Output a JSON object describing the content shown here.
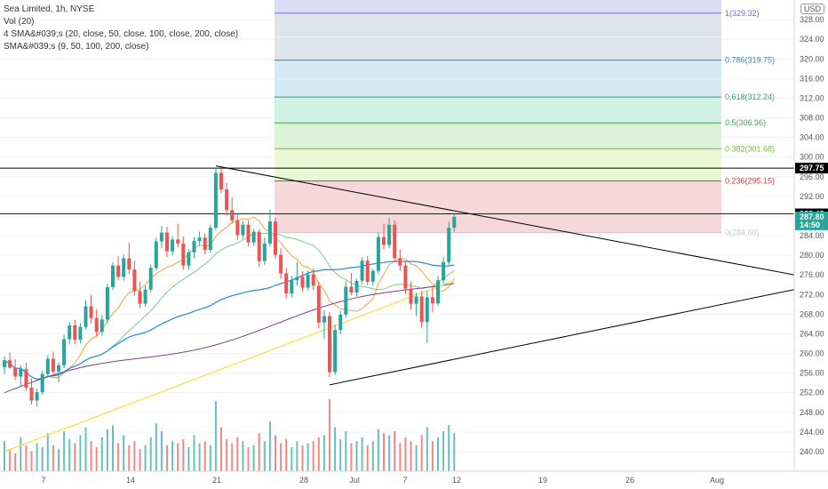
{
  "legend": {
    "title": "Sea Limited, 1h, NYSE",
    "vol": "Vol (20)",
    "sma4": "4 SMA&#039;s (20, close, 50, close, 100, close, 200, close)",
    "sma4b": "SMA&#039;s (9, 50, 100, 200, close)"
  },
  "currency": "USD",
  "colors": {
    "up": "#26a69a",
    "down": "#ef5350",
    "line": "#000000",
    "axis_text": "#555555",
    "sma_orange": "#f4a13b",
    "sma_green": "#7fc88a",
    "sma_blue": "#1e88e5",
    "sma_purple": "#7b3f8c",
    "sma_yellow": "#f2e24a"
  },
  "chart_data": {
    "type": "candlestick",
    "symbol": "Sea Limited",
    "interval": "1h",
    "exchange": "NYSE",
    "ylim": [
      236,
      332
    ],
    "y_ticks": [
      240,
      244,
      248,
      252,
      256,
      260,
      264,
      268,
      272,
      276,
      280,
      284,
      288,
      292,
      296,
      300,
      304,
      308,
      312,
      316,
      320,
      324,
      328
    ],
    "x_ticks": [
      "7",
      "14",
      "21",
      "28",
      "Jul",
      "7",
      "12",
      "19",
      "26",
      "Aug"
    ],
    "price_labels": [
      {
        "text": "297.75",
        "value": 297.75,
        "style": "black"
      },
      {
        "text": "288.43",
        "value": 288.43,
        "style": "black"
      },
      {
        "text": "287.80",
        "value": 287.8,
        "style": "green"
      },
      {
        "text": "14:50",
        "value": 286.2,
        "style": "green"
      }
    ],
    "fibonacci": [
      {
        "label": "1(329.32)",
        "value": 329.32,
        "color": "#6b6bd6",
        "fill": "#e0e0f5"
      },
      {
        "label": "0.786(319.75)",
        "value": 319.75,
        "color": "#2f86c6",
        "fill": "#dde3e8"
      },
      {
        "label": "0.618(312.24)",
        "value": 312.24,
        "color": "#2aa07a",
        "fill": "#d2e8f4"
      },
      {
        "label": "0.5(306.96)",
        "value": 306.96,
        "color": "#3aa84a",
        "fill": "#d0f0e4"
      },
      {
        "label": "0.382(301.68)",
        "value": 301.68,
        "color": "#76b83a",
        "fill": "#daf2d6"
      },
      {
        "label": "0.236(295.15)",
        "value": 295.15,
        "color": "#d43a3a",
        "fill": "#e9f5d2"
      },
      {
        "label": "0(284.60)",
        "value": 284.6,
        "color": "#c8c8c8",
        "fill": "#f5d6d6"
      }
    ],
    "candles": [
      [
        257.2,
        259.4,
        255.8,
        258.6
      ],
      [
        258.6,
        260.2,
        256.9,
        257.1
      ],
      [
        257.1,
        258.8,
        254.6,
        255.3
      ],
      [
        255.3,
        257.6,
        253.2,
        256.8
      ],
      [
        256.8,
        258.1,
        252.4,
        253.0
      ],
      [
        253.0,
        254.9,
        249.6,
        250.4
      ],
      [
        250.4,
        252.8,
        249.2,
        252.1
      ],
      [
        252.1,
        256.4,
        251.6,
        255.8
      ],
      [
        255.8,
        259.6,
        255.1,
        258.9
      ],
      [
        258.9,
        260.4,
        255.7,
        256.3
      ],
      [
        256.3,
        258.2,
        254.1,
        257.6
      ],
      [
        257.6,
        263.8,
        257.0,
        262.9
      ],
      [
        262.9,
        266.4,
        261.8,
        265.7
      ],
      [
        265.7,
        266.8,
        261.9,
        262.8
      ],
      [
        262.8,
        266.2,
        262.1,
        265.4
      ],
      [
        265.4,
        270.8,
        264.9,
        269.6
      ],
      [
        269.6,
        271.9,
        266.1,
        267.2
      ],
      [
        267.2,
        269.0,
        263.5,
        264.4
      ],
      [
        264.4,
        267.8,
        263.6,
        266.9
      ],
      [
        266.9,
        274.2,
        266.2,
        273.5
      ],
      [
        273.5,
        278.6,
        272.9,
        277.9
      ],
      [
        277.9,
        279.8,
        274.9,
        275.6
      ],
      [
        275.6,
        280.2,
        274.8,
        279.4
      ],
      [
        279.4,
        282.6,
        276.2,
        277.1
      ],
      [
        277.1,
        278.9,
        271.8,
        272.7
      ],
      [
        272.7,
        274.6,
        269.2,
        270.1
      ],
      [
        270.1,
        273.8,
        269.5,
        273.0
      ],
      [
        273.0,
        278.1,
        272.4,
        277.4
      ],
      [
        277.4,
        283.6,
        276.9,
        282.8
      ],
      [
        282.8,
        285.9,
        281.4,
        284.6
      ],
      [
        284.6,
        285.8,
        279.6,
        280.8
      ],
      [
        280.8,
        283.9,
        280.0,
        283.2
      ],
      [
        283.2,
        286.4,
        281.6,
        282.4
      ],
      [
        282.4,
        283.8,
        277.1,
        277.9
      ],
      [
        277.9,
        281.2,
        277.1,
        280.6
      ],
      [
        280.6,
        283.7,
        279.4,
        282.9
      ],
      [
        282.9,
        284.8,
        281.9,
        283.6
      ],
      [
        283.6,
        284.4,
        280.2,
        281.1
      ],
      [
        281.1,
        286.3,
        280.5,
        285.6
      ],
      [
        285.6,
        297.9,
        285.1,
        296.8
      ],
      [
        296.8,
        298.2,
        292.6,
        293.4
      ],
      [
        293.4,
        294.8,
        288.1,
        289.2
      ],
      [
        289.2,
        291.8,
        286.4,
        287.1
      ],
      [
        287.1,
        288.4,
        283.2,
        284.1
      ],
      [
        284.1,
        286.9,
        283.4,
        286.2
      ],
      [
        286.2,
        287.1,
        281.8,
        282.6
      ],
      [
        282.6,
        285.4,
        281.9,
        284.8
      ],
      [
        284.8,
        285.3,
        277.6,
        278.8
      ],
      [
        278.8,
        283.6,
        278.0,
        282.4
      ],
      [
        282.4,
        289.2,
        281.8,
        286.9
      ],
      [
        286.9,
        287.6,
        279.3,
        280.1
      ],
      [
        280.1,
        281.4,
        275.2,
        276.3
      ],
      [
        276.3,
        277.4,
        271.1,
        272.2
      ],
      [
        272.2,
        275.8,
        271.4,
        274.9
      ],
      [
        274.9,
        278.6,
        273.8,
        275.6
      ],
      [
        275.6,
        276.7,
        272.6,
        273.4
      ],
      [
        273.4,
        276.9,
        272.8,
        276.1
      ],
      [
        276.1,
        277.3,
        272.9,
        273.8
      ],
      [
        273.8,
        274.6,
        265.1,
        266.3
      ],
      [
        266.3,
        268.8,
        262.9,
        267.6
      ],
      [
        267.6,
        268.4,
        255.1,
        256.2
      ],
      [
        256.2,
        265.9,
        255.6,
        264.8
      ],
      [
        264.8,
        268.7,
        263.9,
        267.9
      ],
      [
        267.9,
        274.8,
        267.2,
        273.6
      ],
      [
        273.6,
        276.4,
        271.8,
        272.4
      ],
      [
        272.4,
        275.2,
        271.6,
        274.8
      ],
      [
        274.8,
        279.6,
        274.1,
        278.9
      ],
      [
        278.9,
        279.8,
        273.9,
        274.6
      ],
      [
        274.6,
        277.2,
        273.8,
        276.8
      ],
      [
        276.8,
        284.6,
        276.1,
        283.7
      ],
      [
        283.7,
        286.4,
        281.2,
        282.1
      ],
      [
        282.1,
        287.6,
        281.4,
        286.2
      ],
      [
        286.2,
        287.1,
        278.6,
        279.4
      ],
      [
        279.4,
        281.2,
        276.8,
        277.9
      ],
      [
        277.9,
        278.8,
        272.1,
        273.2
      ],
      [
        273.2,
        274.6,
        268.9,
        270.1
      ],
      [
        270.1,
        272.4,
        267.6,
        271.6
      ],
      [
        271.6,
        272.8,
        265.2,
        266.4
      ],
      [
        266.4,
        272.8,
        262.1,
        271.4
      ],
      [
        271.4,
        273.6,
        268.4,
        270.2
      ],
      [
        270.2,
        275.8,
        269.6,
        274.9
      ],
      [
        274.9,
        279.6,
        274.2,
        278.6
      ],
      [
        278.6,
        286.9,
        278.0,
        285.6
      ],
      [
        285.6,
        288.4,
        284.8,
        287.8
      ]
    ],
    "volume": [
      30,
      22,
      18,
      34,
      26,
      20,
      28,
      24,
      38,
      26,
      22,
      40,
      32,
      28,
      36,
      44,
      30,
      24,
      34,
      42,
      46,
      28,
      36,
      26,
      30,
      22,
      26,
      34,
      48,
      40,
      26,
      30,
      28,
      32,
      24,
      36,
      28,
      30,
      26,
      70,
      44,
      32,
      28,
      34,
      30,
      24,
      26,
      38,
      30,
      50,
      36,
      28,
      32,
      24,
      30,
      26,
      28,
      30,
      34,
      36,
      72,
      44,
      32,
      40,
      28,
      30,
      34,
      26,
      30,
      42,
      38,
      36,
      40,
      28,
      34,
      30,
      26,
      36,
      44,
      30,
      34,
      40,
      46,
      38
    ],
    "trendlines": [
      {
        "name": "upper",
        "from": [
          39,
          298.2
        ],
        "to": [
          118,
          276.0
        ]
      },
      {
        "name": "lower",
        "from": [
          60,
          253.6
        ],
        "to": [
          118,
          273.0
        ]
      }
    ]
  }
}
